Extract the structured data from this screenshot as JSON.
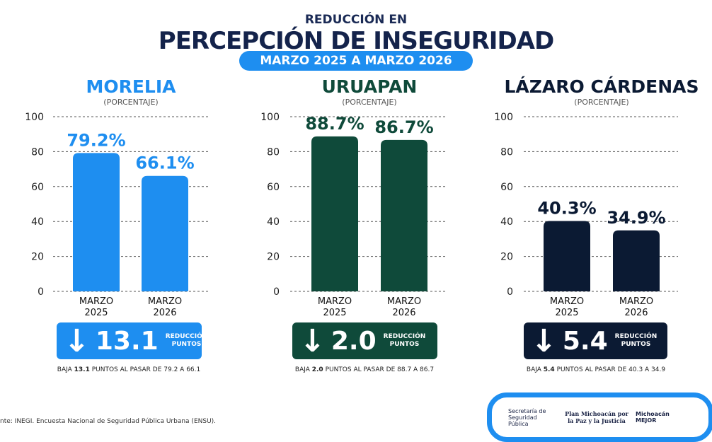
{
  "header": {
    "subtitle": "REDUCCIÓN EN",
    "title": "PERCEPCIÓN DE INSEGURIDAD",
    "period": "MARZO 2025 A MARZO 2026"
  },
  "chart_data": [
    {
      "type": "bar",
      "title": "MORELIA",
      "subtitle": "(PORCENTAJE)",
      "categories": [
        "MARZO 2025",
        "MARZO 2026"
      ],
      "values": [
        79.2,
        66.1
      ],
      "labels": [
        "79.2%",
        "66.1%"
      ],
      "ylim": [
        0,
        100
      ],
      "yticks": [
        "0",
        "20",
        "40",
        "60",
        "80",
        "100"
      ],
      "grid": true,
      "color": "#1e8ef0",
      "reduction": "13.1",
      "reduction_label": [
        "REDUCCIÓN",
        "PUNTOS"
      ],
      "note_pre": "BAJA ",
      "note_bold": "13.1",
      "note_post": " PUNTOS AL PASAR DE 79.2 A 66.1"
    },
    {
      "type": "bar",
      "title": "URUAPAN",
      "subtitle": "(PORCENTAJE)",
      "categories": [
        "MARZO 2025",
        "MARZO 2026"
      ],
      "values": [
        88.7,
        86.7
      ],
      "labels": [
        "88.7%",
        "86.7%"
      ],
      "ylim": [
        0,
        100
      ],
      "yticks": [
        "0",
        "20",
        "40",
        "60",
        "80",
        "100"
      ],
      "grid": true,
      "color": "#0f4a3a",
      "reduction": "2.0",
      "reduction_label": [
        "REDUCCIÓN",
        "PUNTOS"
      ],
      "note_pre": "BAJA ",
      "note_bold": "2.0",
      "note_post": " PUNTOS AL PASAR DE 88.7 A 86.7"
    },
    {
      "type": "bar",
      "title": "LÁZARO CÁRDENAS",
      "subtitle": "(PORCENTAJE)",
      "categories": [
        "MARZO 2025",
        "MARZO 2026"
      ],
      "values": [
        40.3,
        34.9
      ],
      "labels": [
        "40.3%",
        "34.9%"
      ],
      "ylim": [
        0,
        100
      ],
      "yticks": [
        "0",
        "20",
        "40",
        "60",
        "80",
        "100"
      ],
      "grid": true,
      "color": "#0b1a33",
      "reduction": "5.4",
      "reduction_label": [
        "REDUCCIÓN",
        "PUNTOS"
      ],
      "note_pre": "BAJA ",
      "note_bold": "5.4",
      "note_post": " PUNTOS AL PASAR DE 40.3 A 34.9"
    }
  ],
  "footer": {
    "source": "nte: INEGI. Encuesta Nacional de Seguridad Pública Urbana (ENSU).",
    "logos": [
      "Secretaría de Seguridad Pública",
      "Plan Michoacán por la Paz y la Justicia",
      "Michoacán MEJOR"
    ]
  },
  "title_colors": [
    "#1e8ef0",
    "#0f4a3a",
    "#0b1a33"
  ]
}
